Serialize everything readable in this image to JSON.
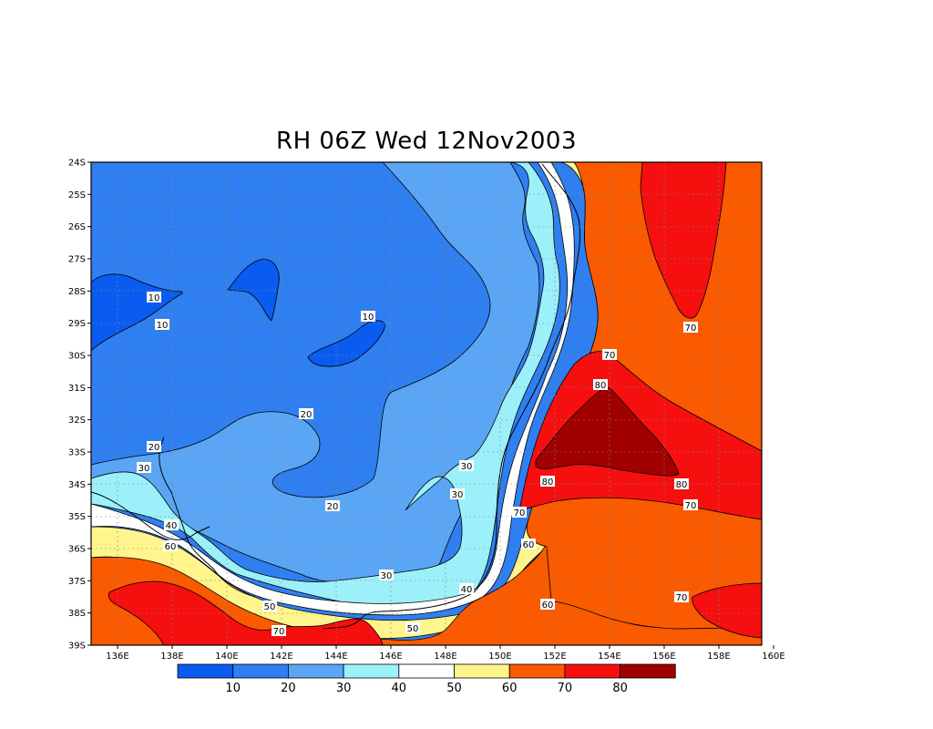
{
  "title": "RH 06Z Wed 12Nov2003",
  "y_ticks": [
    "24S",
    "25S",
    "26S",
    "27S",
    "28S",
    "29S",
    "30S",
    "31S",
    "32S",
    "33S",
    "34S",
    "35S",
    "36S",
    "37S",
    "38S",
    "39S"
  ],
  "x_ticks": [
    "136E",
    "138E",
    "140E",
    "142E",
    "144E",
    "146E",
    "148E",
    "150E",
    "152E",
    "154E",
    "156E",
    "158E",
    "160E"
  ],
  "colorbar": {
    "colors": [
      "#0a5cf0",
      "#2f7ff0",
      "#5aa6f5",
      "#9cf0fa",
      "#ffffff",
      "#fff58c",
      "#fa5a00",
      "#f50f0f",
      "#a00000"
    ],
    "labels": [
      "10",
      "20",
      "30",
      "40",
      "50",
      "60",
      "70",
      "80"
    ]
  },
  "contour_labels": [
    {
      "text": "10"
    },
    {
      "text": "10"
    },
    {
      "text": "10"
    },
    {
      "text": "20"
    },
    {
      "text": "20"
    },
    {
      "text": "20"
    },
    {
      "text": "30"
    },
    {
      "text": "30"
    },
    {
      "text": "30"
    },
    {
      "text": "30"
    },
    {
      "text": "40"
    },
    {
      "text": "40"
    },
    {
      "text": "50"
    },
    {
      "text": "50"
    },
    {
      "text": "60"
    },
    {
      "text": "60"
    },
    {
      "text": "60"
    },
    {
      "text": "70"
    },
    {
      "text": "70"
    },
    {
      "text": "70"
    },
    {
      "text": "70"
    },
    {
      "text": "70"
    },
    {
      "text": "70"
    },
    {
      "text": "80"
    },
    {
      "text": "80"
    },
    {
      "text": "80"
    }
  ]
}
